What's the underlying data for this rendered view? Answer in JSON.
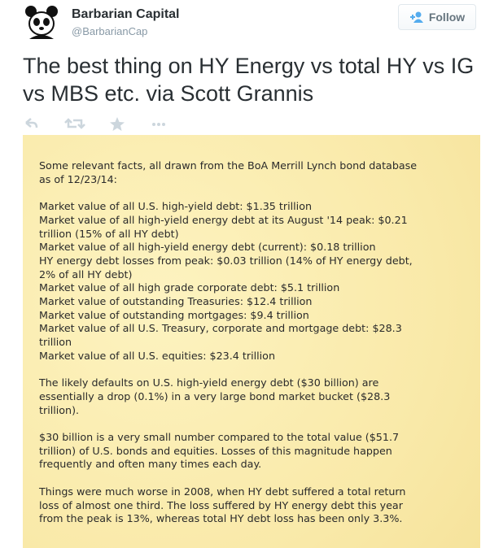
{
  "header": {
    "name": "Barbarian Capital",
    "handle": "@BarbarianCap",
    "follow": "Follow"
  },
  "tweet": {
    "text": "The best thing on HY Energy vs total HY vs IG vs MBS etc. via Scott Grannis"
  },
  "image": {
    "paragraphs": [
      [
        "Some relevant facts, all drawn from the BoA Merrill Lynch bond database",
        "as of 12/23/14:"
      ],
      [
        "Market value of all U.S. high-yield debt: $1.35 trillion",
        "Market value of all high-yield energy debt at its August '14 peak: $0.21",
        "trillion (15% of all HY debt)",
        "Market value of all high-yield energy debt (current): $0.18 trillion",
        "HY energy debt losses from peak: $0.03 trillion (14% of HY energy debt,",
        "2% of all HY debt)",
        "Market value of all high grade corporate debt: $5.1 trillion",
        "Market value of outstanding Treasuries: $12.4 trillion",
        "Market value of outstanding mortgages: $9.4 trillion",
        "Market value of all U.S. Treasury, corporate and mortgage debt: $28.3",
        "trillion",
        "Market value of all U.S. equities: $23.4 trillion"
      ],
      [
        "The likely defaults on U.S. high-yield energy debt ($30 billion) are",
        "essentially a drop (0.1%) in a very large bond market bucket ($28.3",
        "trillion)."
      ],
      [
        "$30 billion is a very small number compared to the total value ($51.7",
        "trillion) of U.S. bonds and equities. Losses of this magnitude happen",
        "frequently and often many times each day."
      ],
      [
        "Things were much worse in 2008, when HY debt suffered a total return",
        "loss of almost one third. The loss suffered by HY energy debt this year",
        "from the peak is 13%, whereas total HY debt loss has been only 3.3%."
      ]
    ]
  }
}
